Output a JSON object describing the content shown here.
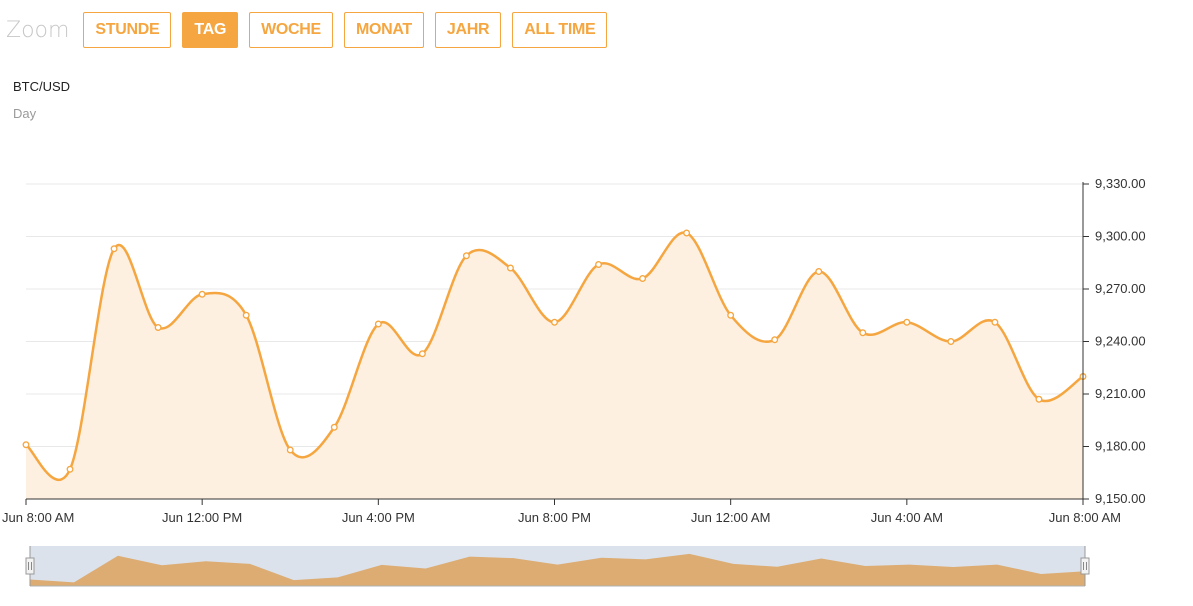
{
  "zoom": {
    "label": "Zoom",
    "buttons": [
      {
        "label": "STUNDE",
        "active": false
      },
      {
        "label": "TAG",
        "active": true
      },
      {
        "label": "WOCHE",
        "active": false
      },
      {
        "label": "MONAT",
        "active": false
      },
      {
        "label": "JAHR",
        "active": false
      },
      {
        "label": "ALL TIME",
        "active": false
      }
    ]
  },
  "header": {
    "pair": "BTC/USD",
    "period": "Day"
  },
  "colors": {
    "accent": "#f5a640",
    "area": "#fdf0e0",
    "navigator": "#dcac72",
    "navigator_bg": "#dbe2ec"
  },
  "chart_data": {
    "type": "area",
    "title": "BTC/USD",
    "subtitle": "Day",
    "x_tick_labels": [
      "Jun 8:00 AM",
      "Jun 12:00 PM",
      "Jun 4:00 PM",
      "Jun 8:00 PM",
      "Jun 12:00 AM",
      "Jun 4:00 AM",
      "Jun 8:00 AM"
    ],
    "y_tick_labels": [
      "9,150.00",
      "9,180.00",
      "9,210.00",
      "9,240.00",
      "9,270.00",
      "9,300.00",
      "9,330.00"
    ],
    "ylim": [
      9150,
      9330
    ],
    "x_hours": [
      0,
      1,
      2,
      3,
      4,
      5,
      6,
      7,
      8,
      9,
      10,
      11,
      12,
      13,
      14,
      15,
      16,
      17,
      18,
      19,
      20,
      21,
      22,
      23,
      24
    ],
    "series": [
      {
        "values": [
          9181,
          9167,
          9293,
          9248,
          9267,
          9255,
          9178,
          9191,
          9250,
          9233,
          9289,
          9282,
          9251,
          9284,
          9276,
          9302,
          9255,
          9241,
          9280,
          9245,
          9251,
          9240,
          9251,
          9207,
          9220
        ]
      }
    ],
    "grid": true,
    "y_axis_side": "right",
    "navigator": true
  }
}
